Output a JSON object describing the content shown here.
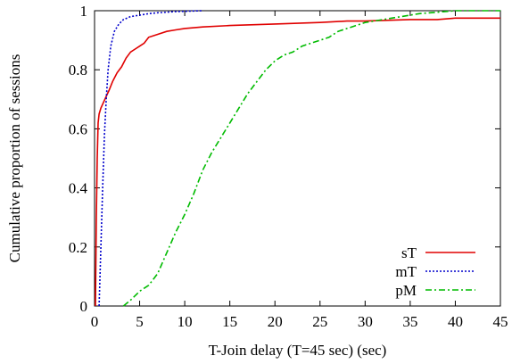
{
  "chart_data": {
    "type": "line",
    "title": "",
    "xlabel": "T-Join delay (T=45 sec) (sec)",
    "ylabel": "Cumulative proportion of sessions",
    "xlim": [
      0,
      45
    ],
    "ylim": [
      0,
      1
    ],
    "xticks": [
      0,
      5,
      10,
      15,
      20,
      25,
      30,
      35,
      40,
      45
    ],
    "yticks": [
      0,
      0.2,
      0.4,
      0.6,
      0.8,
      1
    ],
    "ytick_labels": [
      "0",
      "0.2",
      "0.4",
      "0.6",
      "0.8",
      "1"
    ],
    "grid": false,
    "legend_position": "bottom-right",
    "series": [
      {
        "name": "sT",
        "color": "#e00000",
        "dash": "solid",
        "x": [
          0.1,
          0.2,
          0.3,
          0.4,
          0.5,
          0.7,
          1.0,
          1.3,
          1.6,
          2.0,
          2.5,
          3.0,
          3.5,
          4.0,
          4.5,
          5.0,
          5.5,
          6.0,
          7.0,
          8.0,
          9.0,
          10.0,
          12.0,
          15.0,
          20.0,
          25.0,
          28.0,
          30.0,
          35.0,
          38.0,
          40.0,
          42.0,
          45.0
        ],
        "y": [
          0.0,
          0.3,
          0.5,
          0.62,
          0.65,
          0.67,
          0.69,
          0.71,
          0.73,
          0.76,
          0.79,
          0.81,
          0.84,
          0.86,
          0.87,
          0.88,
          0.89,
          0.91,
          0.92,
          0.93,
          0.935,
          0.94,
          0.945,
          0.95,
          0.955,
          0.96,
          0.965,
          0.965,
          0.97,
          0.97,
          0.975,
          0.975,
          0.975
        ]
      },
      {
        "name": "mT",
        "color": "#0000cc",
        "dash": "dotted",
        "x": [
          0.5,
          0.7,
          0.9,
          1.1,
          1.3,
          1.5,
          1.8,
          2.2,
          2.7,
          3.2,
          4.0,
          5.0,
          6.0,
          7.0,
          8.0,
          9.0,
          10.0,
          11.0,
          12.0
        ],
        "y": [
          0.0,
          0.2,
          0.4,
          0.58,
          0.7,
          0.8,
          0.88,
          0.93,
          0.955,
          0.97,
          0.98,
          0.985,
          0.99,
          0.993,
          0.995,
          0.997,
          0.998,
          0.999,
          1.0
        ]
      },
      {
        "name": "pM",
        "color": "#00bb00",
        "dash": "dashdot",
        "x": [
          3.2,
          4.0,
          5.0,
          6.0,
          7.0,
          8.0,
          9.0,
          10.0,
          11.0,
          12.0,
          13.0,
          14.0,
          15.0,
          16.0,
          17.0,
          18.0,
          19.0,
          20.0,
          21.0,
          22.0,
          23.0,
          24.0,
          25.0,
          26.0,
          27.0,
          28.0,
          29.0,
          30.0,
          32.0,
          34.0,
          36.0,
          38.0,
          40.0,
          42.0,
          45.0
        ],
        "y": [
          0.0,
          0.02,
          0.05,
          0.07,
          0.11,
          0.18,
          0.25,
          0.31,
          0.38,
          0.46,
          0.52,
          0.57,
          0.62,
          0.67,
          0.72,
          0.76,
          0.8,
          0.83,
          0.85,
          0.86,
          0.88,
          0.89,
          0.9,
          0.91,
          0.93,
          0.94,
          0.95,
          0.96,
          0.97,
          0.98,
          0.99,
          0.995,
          1.0,
          1.0,
          1.0
        ]
      }
    ]
  }
}
